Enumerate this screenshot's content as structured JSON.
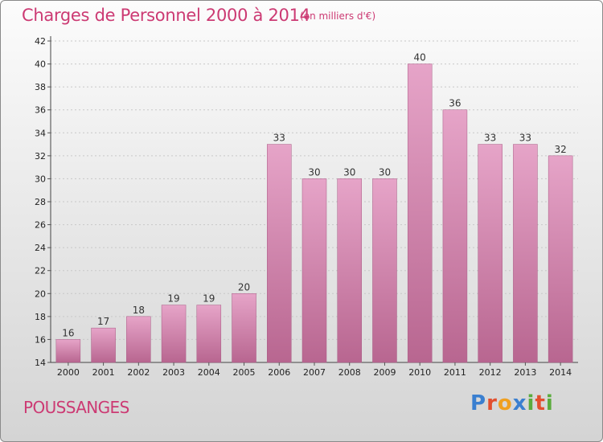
{
  "title": "Charges de Personnel 2000 à 2014",
  "unit": "(en milliers d'€)",
  "town": "POUSSANGES",
  "logo": {
    "text": "Proxiti",
    "letters": [
      {
        "char": "P",
        "color": "#3a7fd0"
      },
      {
        "char": "r",
        "color": "#e24f2e"
      },
      {
        "char": "o",
        "color": "#f0a020"
      },
      {
        "char": "x",
        "color": "#3a7fd0"
      },
      {
        "char": "i",
        "color": "#5aab3c"
      },
      {
        "char": "t",
        "color": "#e24f2e"
      },
      {
        "char": "i",
        "color": "#5aab3c"
      }
    ]
  },
  "chart_data": {
    "type": "bar",
    "title": "Charges de Personnel 2000 à 2014",
    "subtitle": "(en milliers d'€)",
    "categories": [
      "2000",
      "2001",
      "2002",
      "2003",
      "2004",
      "2005",
      "2006",
      "2007",
      "2008",
      "2009",
      "2010",
      "2011",
      "2012",
      "2013",
      "2014"
    ],
    "values": [
      16,
      17,
      18,
      19,
      19,
      20,
      33,
      30,
      30,
      30,
      40,
      36,
      33,
      33,
      32
    ],
    "ylim": [
      14,
      42
    ],
    "yticks": [
      14,
      16,
      18,
      20,
      22,
      24,
      26,
      28,
      30,
      32,
      34,
      36,
      38,
      40,
      42
    ],
    "grid": true,
    "bar_color": "#d47fae"
  }
}
